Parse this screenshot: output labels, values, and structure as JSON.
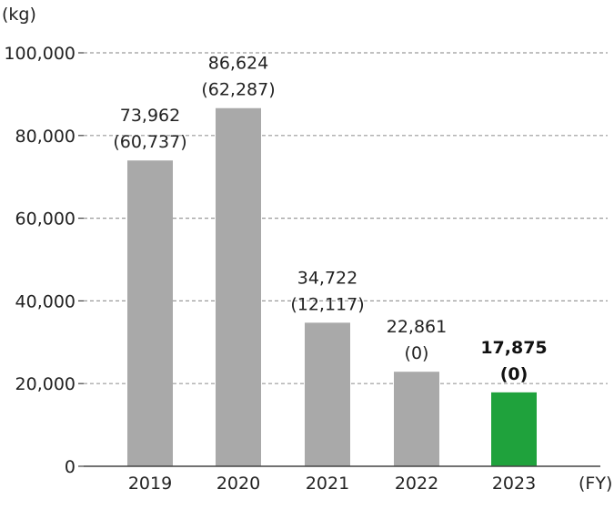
{
  "chart_data": {
    "type": "bar",
    "title": "",
    "y_unit": "(kg)",
    "x_unit": "(FY)",
    "categories": [
      "2019",
      "2020",
      "2021",
      "2022",
      "2023"
    ],
    "values": [
      73962,
      86624,
      34722,
      22861,
      17875
    ],
    "value_labels": [
      "73,962",
      "86,624",
      "34,722",
      "22,861",
      "17,875"
    ],
    "sub_labels": [
      "(60,737)",
      "(62,287)",
      "(12,117)",
      "(0)",
      "(0)"
    ],
    "highlight_index": 4,
    "ylim": [
      0,
      100000
    ],
    "yticks": [
      0,
      20000,
      40000,
      60000,
      80000,
      100000
    ],
    "ytick_labels": [
      "0",
      "20,000",
      "40,000",
      "60,000",
      "80,000",
      "100,000"
    ],
    "grid": true,
    "colors": {
      "bar": "#a9a9a9",
      "highlight": "#1fa23c",
      "grid": "#9a9a9a",
      "axis": "#444444"
    }
  }
}
